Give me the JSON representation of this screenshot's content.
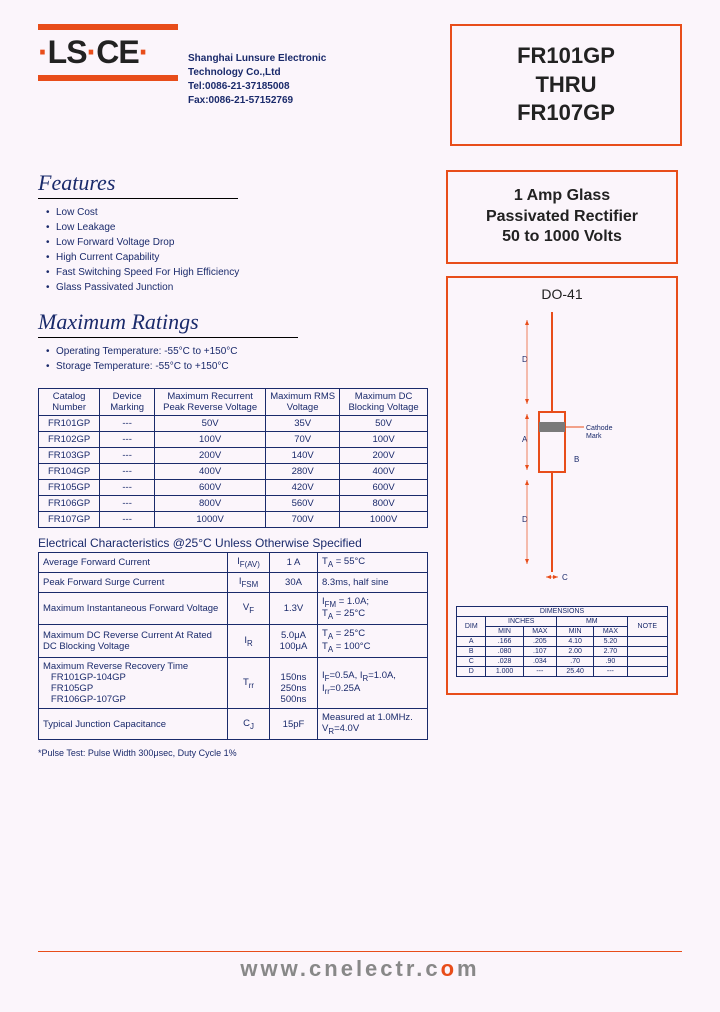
{
  "company": {
    "name_line1": "Shanghai Lunsure Electronic",
    "name_line2": "Technology Co.,Ltd",
    "tel": "Tel:0086-21-37185008",
    "fax": "Fax:0086-21-57152769"
  },
  "title": {
    "line1": "FR101GP",
    "line2": "THRU",
    "line3": "FR107GP"
  },
  "subtitle": {
    "line1": "1 Amp Glass",
    "line2": "Passivated Rectifier",
    "line3": "50 to 1000 Volts"
  },
  "features": {
    "heading": "Features",
    "items": [
      "Low Cost",
      "Low Leakage",
      "Low Forward Voltage Drop",
      "High Current Capability",
      "Fast Switching Speed For High Efficiency",
      "Glass Passivated Junction"
    ]
  },
  "maxratings": {
    "heading": "Maximum Ratings",
    "bullets": [
      "Operating Temperature: -55°C to +150°C",
      "Storage Temperature: -55°C to +150°C"
    ],
    "headers": [
      "Catalog Number",
      "Device Marking",
      "Maximum Recurrent Peak Reverse Voltage",
      "Maximum RMS Voltage",
      "Maximum DC Blocking Voltage"
    ],
    "rows": [
      [
        "FR101GP",
        "---",
        "50V",
        "35V",
        "50V"
      ],
      [
        "FR102GP",
        "---",
        "100V",
        "70V",
        "100V"
      ],
      [
        "FR103GP",
        "---",
        "200V",
        "140V",
        "200V"
      ],
      [
        "FR104GP",
        "---",
        "400V",
        "280V",
        "400V"
      ],
      [
        "FR105GP",
        "---",
        "600V",
        "420V",
        "600V"
      ],
      [
        "FR106GP",
        "---",
        "800V",
        "560V",
        "800V"
      ],
      [
        "FR107GP",
        "---",
        "1000V",
        "700V",
        "1000V"
      ]
    ]
  },
  "elec": {
    "heading": "Electrical Characteristics @25°C Unless Otherwise Specified",
    "rows": [
      {
        "p": "Average Forward Current",
        "s": "I<sub>F(AV)</sub>",
        "v": "1 A",
        "c": "T<sub>A</sub> = 55°C"
      },
      {
        "p": "Peak Forward Surge Current",
        "s": "I<sub>FSM</sub>",
        "v": "30A",
        "c": "8.3ms, half sine"
      },
      {
        "p": "Maximum Instantaneous Forward Voltage",
        "s": "V<sub>F</sub>",
        "v": "1.3V",
        "c": "I<sub>FM</sub> = 1.0A;<br>T<sub>A</sub> = 25°C"
      },
      {
        "p": "Maximum DC Reverse Current At Rated DC Blocking Voltage",
        "s": "I<sub>R</sub>",
        "v": "5.0μA<br>100μA",
        "c": "T<sub>A</sub> = 25°C<br>T<sub>A</sub> = 100°C"
      },
      {
        "p": "Maximum Reverse Recovery Time<br>&nbsp;&nbsp;&nbsp;FR101GP-104GP<br>&nbsp;&nbsp;&nbsp;FR105GP<br>&nbsp;&nbsp;&nbsp;FR106GP-107GP",
        "s": "T<sub>rr</sub>",
        "v": "<br>150ns<br>250ns<br>500ns",
        "c": "I<sub>F</sub>=0.5A, I<sub>R</sub>=1.0A,<br>I<sub>rr</sub>=0.25A"
      },
      {
        "p": "Typical Junction Capacitance",
        "s": "C<sub>J</sub>",
        "v": "15pF",
        "c": "Measured at 1.0MHz. V<sub>R</sub>=4.0V"
      }
    ],
    "footnote": "*Pulse Test: Pulse Width 300μsec, Duty Cycle 1%"
  },
  "package": {
    "label": "DO-41",
    "cathode_label": "Cathode Mark",
    "dim_heading": "DIMENSIONS",
    "unit1": "INCHES",
    "unit2": "MM",
    "cols": [
      "DIM",
      "MIN",
      "MAX",
      "MIN",
      "MAX",
      "NOTE"
    ],
    "rows": [
      [
        "A",
        ".166",
        ".205",
        "4.10",
        "5.20",
        ""
      ],
      [
        "B",
        ".080",
        ".107",
        "2.00",
        "2.70",
        ""
      ],
      [
        "C",
        ".028",
        ".034",
        ".70",
        ".90",
        ""
      ],
      [
        "D",
        "1.000",
        "---",
        "25.40",
        "---",
        ""
      ]
    ]
  },
  "footer_url": "www.cnelectr.com",
  "colors": {
    "accent": "#e84d1a",
    "text": "#1a2a6b",
    "bg": "#fbf5fb"
  }
}
